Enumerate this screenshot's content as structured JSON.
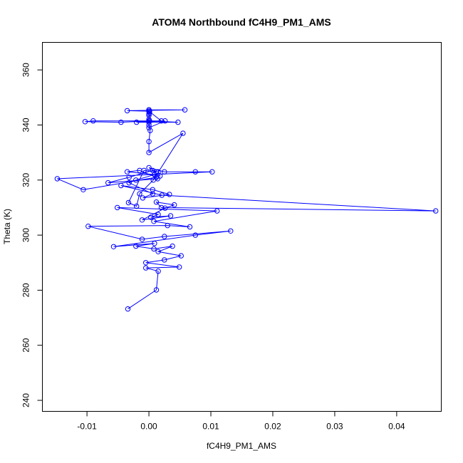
{
  "chart_data": {
    "type": "scatter",
    "title": "ATOM4 Northbound fC4H9_PM1_AMS",
    "xlabel": "fC4H9_PM1_AMS",
    "ylabel": "Theta (K)",
    "xlim": [
      -0.0172,
      0.0472
    ],
    "ylim": [
      236,
      370
    ],
    "xticks": [
      -0.01,
      0.0,
      0.01,
      0.02,
      0.03,
      0.04
    ],
    "xtick_labels": [
      "-0.01",
      "0.00",
      "0.01",
      "0.02",
      "0.03",
      "0.04"
    ],
    "yticks": [
      240,
      260,
      280,
      300,
      320,
      340,
      360
    ],
    "ytick_labels": [
      "240",
      "260",
      "280",
      "300",
      "320",
      "340",
      "360"
    ],
    "grid": false,
    "color": "#0000ff",
    "series": [
      {
        "name": "fC4H9_PM1_AMS",
        "mode": "lines+markers",
        "x": [
          -0.0034,
          0.0012,
          0.0015,
          -0.0005,
          0.0049,
          -0.0005,
          0.0025,
          0.0052,
          0.0015,
          0.0038,
          0.0008,
          -0.0021,
          0.0009,
          -0.0057,
          0.0075,
          0.0132,
          0.0025,
          -0.0011,
          -0.0098,
          0.003,
          0.0066,
          0.0008,
          0.011,
          -0.0051,
          0.0015,
          0.0003,
          0.0035,
          -0.0011,
          0.0026,
          0.0041,
          0.0012,
          0.002,
          0.0463,
          0.0021,
          -0.0045,
          0.0006,
          0.0033,
          -0.001,
          0.0006,
          -0.0032,
          -0.0021,
          0.0009,
          0.0018,
          0.0015,
          0.0006,
          -0.0032,
          -0.0066,
          0.0014,
          0.0009,
          -0.0035,
          -0.0015,
          0.0012,
          -0.0106,
          -0.0148,
          0.0102,
          0.0075,
          0.0025,
          0.0,
          0.0012,
          -0.0008,
          -0.0033,
          -0.002,
          -0.0015,
          0.0007,
          0.0055,
          0.0,
          0.0,
          0.0002,
          0.0,
          0.0,
          0.0,
          0.0001,
          0.0,
          0.0,
          0.0,
          0.0026,
          -0.002,
          0.0,
          0.0047,
          0.0,
          -0.009,
          -0.0103,
          -0.0045,
          0.0001,
          0.002,
          0.0,
          0.0,
          0.0058,
          -0.0035,
          0.0,
          0.0001,
          0.0,
          0.0
        ],
        "y": [
          273.2,
          280.1,
          286.9,
          288.1,
          288.4,
          290.0,
          291.0,
          292.5,
          294.0,
          296.0,
          295.0,
          296.0,
          297.0,
          295.8,
          300.0,
          301.5,
          299.5,
          298.5,
          303.2,
          303.5,
          303.0,
          305.0,
          308.8,
          310.0,
          307.5,
          306.5,
          307.0,
          305.5,
          309.8,
          311.0,
          312.0,
          310.0,
          308.8,
          314.5,
          318.0,
          316.5,
          314.8,
          313.5,
          315.0,
          319.0,
          320.0,
          322.0,
          321.5,
          323.0,
          323.5,
          321.0,
          319.0,
          320.5,
          322.0,
          323.0,
          323.5,
          321.0,
          316.5,
          320.5,
          323.0,
          323.0,
          323.0,
          324.5,
          323.0,
          323.5,
          311.8,
          310.5,
          315.0,
          320.0,
          337.0,
          330.0,
          334.0,
          338.0,
          340.0,
          345.5,
          342.0,
          344.5,
          345.0,
          341.5,
          339.0,
          341.5,
          341.0,
          341.0,
          341.0,
          341.5,
          341.5,
          341.2,
          341.0,
          341.5,
          341.5,
          345.0,
          345.5,
          345.5,
          345.2,
          345.0,
          345.0,
          344.0,
          343.5
        ]
      }
    ]
  }
}
